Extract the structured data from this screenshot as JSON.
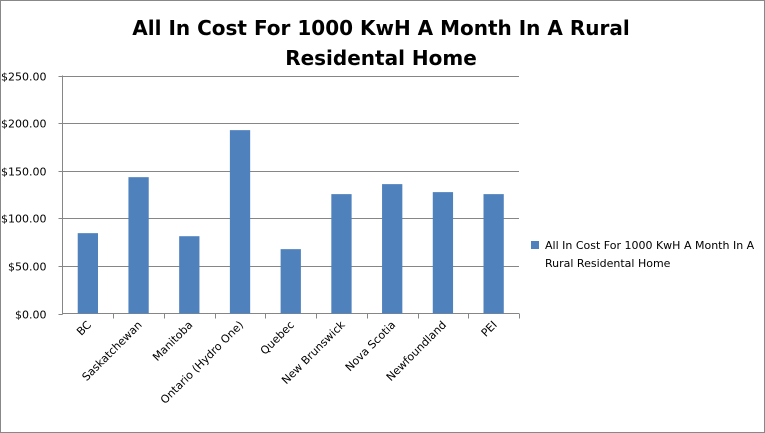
{
  "chart_data": {
    "type": "bar",
    "title": "All In Cost For 1000 KwH A Month In A Rural Residental Home",
    "categories": [
      "BC",
      "Saskatchewan",
      "Manitoba",
      "Ontario (Hydro One)",
      "Quebec",
      "New Brunswick",
      "Nova Scotia",
      "Newfoundland",
      "PEI"
    ],
    "series": [
      {
        "name": "All In Cost For 1000 KwH A Month In A Rural Residental Home",
        "values": [
          84.4,
          143.2,
          81.2,
          192.6,
          67.6,
          125.4,
          135.9,
          127.5,
          125.4
        ],
        "color": "#4f81bd"
      }
    ],
    "yticks": [
      "$0.00",
      "$50.00",
      "$100.00",
      "$150.00",
      "$200.00",
      "$250.00"
    ],
    "ylim": [
      0,
      250
    ],
    "xlabel": "",
    "ylabel": "",
    "grid": true,
    "legend": "right"
  }
}
